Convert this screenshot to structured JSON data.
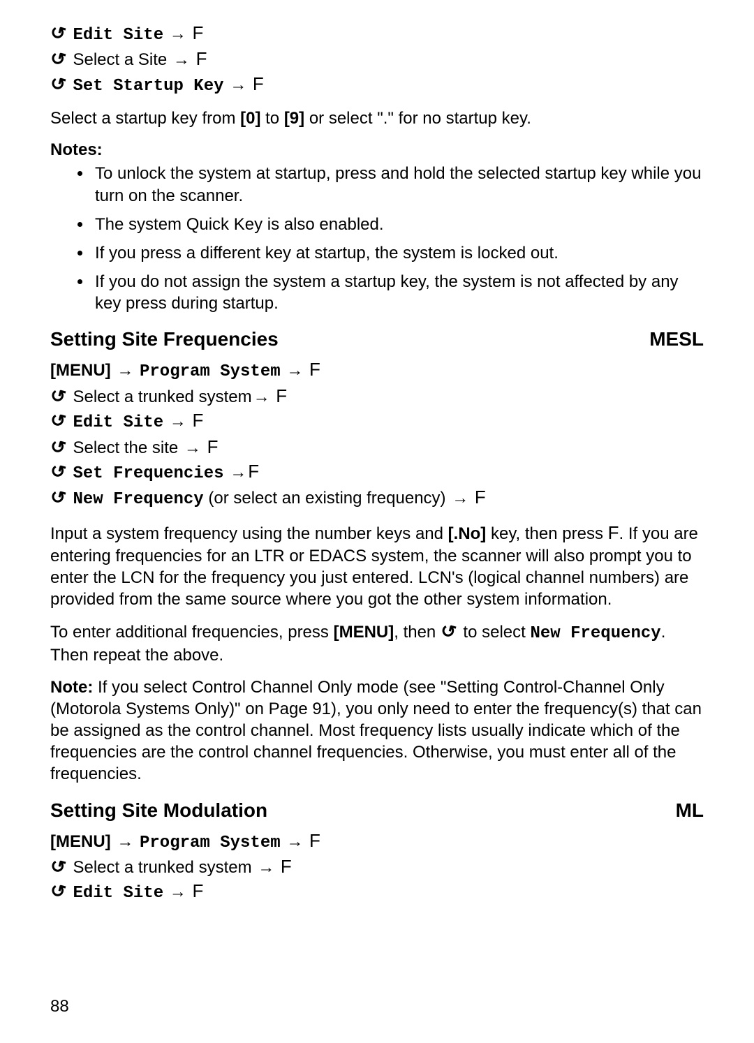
{
  "topNav": {
    "line1_menu": "Edit Site",
    "line2_text": "Select a Site",
    "line3_menu": "Set Startup Key"
  },
  "startupKey": {
    "paraPrefix": "Select a startup key from ",
    "key0": "[0]",
    "mid": " to ",
    "key9": "[9]",
    "paraSuffix": " or select \".\" for no startup key."
  },
  "notesLabel": "Notes:",
  "notes": {
    "n1": "To unlock the system at startup, press and hold the selected startup key while you turn on the scanner.",
    "n2": "The system Quick Key is also enabled.",
    "n3": "If you press a different key at startup, the system is locked out.",
    "n4": "If you do not assign the system a startup key, the system is not affected by any key press during startup."
  },
  "section1": {
    "title": "Setting Site Frequencies",
    "tag": "MESL",
    "menuLabel": "[MENU]",
    "programSystem": "Program System",
    "selectTrunked": " Select a trunked system",
    "editSite": "Edit Site",
    "selectSite": " Select the site",
    "setFreq": "Set Frequencies",
    "newFreq": "New Frequency",
    "newFreqParen": " (or select an existing frequency)",
    "para1a": "Input a system frequency using the number keys and ",
    "noKey": "[.No]",
    "para1b": " key, then press ",
    "para1c": ". If you are entering frequencies for an LTR or EDACS system, the scanner will also prompt you to enter the LCN for the frequency you just entered. LCN's (logical channel numbers) are provided from the same source where you got the other system information.",
    "para2a": "To enter additional frequencies, press ",
    "menuBold": "[MENU]",
    "para2b": ", then ",
    "para2c": " to select ",
    "newFreqMono": "New Frequency",
    "para2d": ". Then repeat the above.",
    "noteLabel": "Note:",
    "noteText": " If you select Control Channel Only mode (see \"Setting Control-Channel Only (Motorola Systems Only)\" on Page 91), you only need to enter the frequency(s) that can be assigned as the control channel. Most frequency lists usually indicate which of the frequencies are the control channel frequencies. Otherwise, you must enter all of the frequencies."
  },
  "section2": {
    "title": "Setting Site Modulation",
    "tag": "ML",
    "menuLabel": "[MENU]",
    "programSystem": "Program System",
    "selectTrunked": " Select a trunked system",
    "editSite": "Edit Site"
  },
  "symbols": {
    "arrow": "→",
    "scroll": "↺",
    "fkey": "F"
  },
  "pageNumber": "88"
}
